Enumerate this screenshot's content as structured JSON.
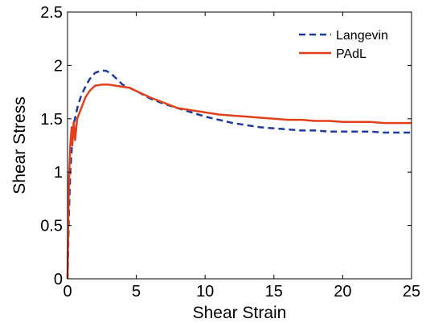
{
  "chart_data": {
    "type": "line",
    "xlabel": "Shear Strain",
    "ylabel": "Shear Stress",
    "xlim": [
      0,
      25
    ],
    "ylim": [
      0,
      2.5
    ],
    "xticks": [
      0,
      5,
      10,
      15,
      20,
      25
    ],
    "yticks": [
      0,
      0.5,
      1,
      1.5,
      2,
      2.5
    ],
    "xtick_labels": [
      "0",
      "5",
      "10",
      "15",
      "20",
      "25"
    ],
    "ytick_labels": [
      "0",
      "0.5",
      "1",
      "1.5",
      "2",
      "2.5"
    ],
    "grid": false,
    "legend_position": "top-right",
    "series": [
      {
        "name": "Langevin",
        "color": "#1f3b9b",
        "style": "dashed",
        "points": [
          [
            0,
            0
          ],
          [
            0.1,
            0.6
          ],
          [
            0.2,
            1.0
          ],
          [
            0.35,
            1.3
          ],
          [
            0.5,
            1.48
          ],
          [
            0.75,
            1.62
          ],
          [
            1,
            1.72
          ],
          [
            1.3,
            1.8
          ],
          [
            1.6,
            1.87
          ],
          [
            2,
            1.93
          ],
          [
            2.4,
            1.95
          ],
          [
            2.8,
            1.95
          ],
          [
            3.2,
            1.92
          ],
          [
            3.6,
            1.87
          ],
          [
            4,
            1.82
          ],
          [
            5,
            1.76
          ],
          [
            6,
            1.69
          ],
          [
            7,
            1.64
          ],
          [
            8,
            1.6
          ],
          [
            9,
            1.56
          ],
          [
            10,
            1.52
          ],
          [
            11,
            1.49
          ],
          [
            12,
            1.46
          ],
          [
            13,
            1.44
          ],
          [
            14,
            1.42
          ],
          [
            15,
            1.41
          ],
          [
            16,
            1.4
          ],
          [
            17,
            1.39
          ],
          [
            18,
            1.39
          ],
          [
            19,
            1.38
          ],
          [
            20,
            1.38
          ],
          [
            21,
            1.38
          ],
          [
            22,
            1.38
          ],
          [
            23,
            1.37
          ],
          [
            24,
            1.37
          ],
          [
            25,
            1.37
          ]
        ]
      },
      {
        "name": "PAdL",
        "color": "#e0401c",
        "style": "solid",
        "points": [
          [
            0,
            0
          ],
          [
            0.05,
            0.5
          ],
          [
            0.1,
            0.9
          ],
          [
            0.2,
            1.25
          ],
          [
            0.3,
            1.42
          ],
          [
            0.35,
            1.25
          ],
          [
            0.45,
            1.47
          ],
          [
            0.55,
            1.3
          ],
          [
            0.7,
            1.5
          ],
          [
            0.85,
            1.55
          ],
          [
            1,
            1.6
          ],
          [
            1.3,
            1.7
          ],
          [
            1.6,
            1.76
          ],
          [
            2,
            1.81
          ],
          [
            2.5,
            1.82
          ],
          [
            3,
            1.82
          ],
          [
            3.5,
            1.81
          ],
          [
            4,
            1.8
          ],
          [
            4.5,
            1.79
          ],
          [
            5,
            1.76
          ],
          [
            6,
            1.7
          ],
          [
            7,
            1.65
          ],
          [
            8,
            1.6
          ],
          [
            9,
            1.58
          ],
          [
            10,
            1.56
          ],
          [
            11,
            1.54
          ],
          [
            12,
            1.53
          ],
          [
            13,
            1.52
          ],
          [
            14,
            1.51
          ],
          [
            15,
            1.5
          ],
          [
            16,
            1.49
          ],
          [
            17,
            1.49
          ],
          [
            18,
            1.48
          ],
          [
            19,
            1.48
          ],
          [
            20,
            1.47
          ],
          [
            21,
            1.47
          ],
          [
            22,
            1.47
          ],
          [
            23,
            1.46
          ],
          [
            24,
            1.46
          ],
          [
            25,
            1.46
          ]
        ]
      }
    ]
  }
}
